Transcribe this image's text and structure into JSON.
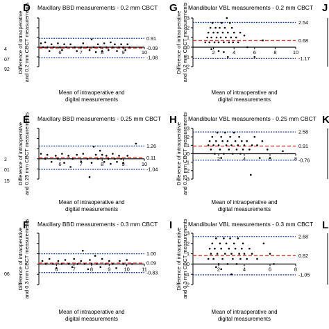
{
  "figure": {
    "edge_fragments": [
      "4",
      "07",
      "92",
      "2",
      "01",
      "15",
      "06"
    ],
    "right_letters": [
      "J",
      "K",
      "L"
    ]
  },
  "chart_data": [
    {
      "panel": "D",
      "type": "scatter",
      "title": "Maxillary BBD measurements - 0.2 mm CBCT",
      "xlabel": "Mean of intraoperative and\ndigital measurements",
      "ylabel": "Difference of intraoperative\nand 0.2 mm CBCT measurements",
      "xlim": [
        5,
        10
      ],
      "ylim": [
        -2,
        3
      ],
      "xticks": [
        6,
        7,
        8,
        9,
        10
      ],
      "yticks": [
        -2,
        -1,
        0,
        1,
        2,
        3
      ],
      "show_y_tick_labels": false,
      "lines": {
        "mean": -0.09,
        "upper": 0.91,
        "lower": -1.08
      },
      "line_labels": [
        "0.91",
        "-0.09",
        "-1.08"
      ],
      "points": [
        [
          5.1,
          0.4
        ],
        [
          5.2,
          0
        ],
        [
          5.3,
          0.5
        ],
        [
          5.4,
          0
        ],
        [
          5.5,
          -0.4
        ],
        [
          5.6,
          0.3
        ],
        [
          5.7,
          0
        ],
        [
          5.9,
          0.4
        ],
        [
          6.0,
          0
        ],
        [
          6.1,
          -0.3
        ],
        [
          6.2,
          0.3
        ],
        [
          6.3,
          0
        ],
        [
          6.5,
          0.3
        ],
        [
          6.7,
          0
        ],
        [
          6.8,
          -0.4
        ],
        [
          7.0,
          0
        ],
        [
          7.1,
          0.4
        ],
        [
          7.3,
          0
        ],
        [
          7.4,
          -0.3
        ],
        [
          7.5,
          0.8
        ],
        [
          7.6,
          0
        ],
        [
          7.7,
          -0.5
        ],
        [
          7.8,
          0.3
        ],
        [
          7.9,
          0
        ],
        [
          8.0,
          -0.4
        ],
        [
          8.1,
          0.4
        ],
        [
          8.2,
          0
        ],
        [
          8.3,
          -0.3
        ],
        [
          8.4,
          0.5
        ],
        [
          8.5,
          0
        ],
        [
          8.6,
          0.3
        ],
        [
          8.7,
          -0.4
        ],
        [
          8.8,
          0
        ],
        [
          8.9,
          0.3
        ],
        [
          9.0,
          0
        ],
        [
          9.1,
          -0.3
        ],
        [
          9.2,
          0.3
        ],
        [
          9.3,
          0
        ]
      ]
    },
    {
      "panel": "G",
      "type": "scatter",
      "title": "Mandibular VBL measurements - 0.2 mm CBCT",
      "xlabel": "Mean of intraoperative and\ndigital measurements",
      "ylabel": "Difference of intraoperative\nand 0.2 mm CBCT measurements",
      "xlim": [
        0,
        10
      ],
      "ylim": [
        -2,
        3
      ],
      "xticks": [
        2,
        4,
        6,
        8,
        10
      ],
      "yticks": [
        -2,
        -1,
        0,
        1,
        2,
        3
      ],
      "show_y_tick_labels": true,
      "lines": {
        "mean": 0.68,
        "upper": 2.54,
        "lower": -1.17
      },
      "line_labels": [
        "2.54",
        "0.68",
        "-1.17"
      ],
      "points": [
        [
          1.2,
          0.5
        ],
        [
          1.4,
          1.0
        ],
        [
          1.5,
          1.5
        ],
        [
          1.6,
          0.5
        ],
        [
          1.7,
          2.0
        ],
        [
          1.8,
          1.0
        ],
        [
          1.9,
          2.5
        ],
        [
          2.0,
          1.5
        ],
        [
          2.1,
          0.5
        ],
        [
          2.2,
          2.0
        ],
        [
          2.3,
          1.0
        ],
        [
          2.4,
          1.5
        ],
        [
          2.5,
          0.5
        ],
        [
          2.6,
          2.0
        ],
        [
          2.7,
          1.0
        ],
        [
          2.8,
          2.5
        ],
        [
          2.9,
          1.5
        ],
        [
          3.0,
          0.5
        ],
        [
          3.1,
          2.0
        ],
        [
          3.2,
          1.0
        ],
        [
          3.3,
          3.0
        ],
        [
          3.4,
          1.5
        ],
        [
          3.5,
          0.5
        ],
        [
          3.6,
          2.5
        ],
        [
          3.7,
          1.0
        ],
        [
          3.8,
          2.0
        ],
        [
          3.9,
          0.5
        ],
        [
          4.0,
          1.5
        ],
        [
          4.2,
          1.0
        ],
        [
          4.4,
          0.5
        ],
        [
          4.6,
          1.5
        ],
        [
          2.5,
          -0.4
        ],
        [
          3.0,
          -0.5
        ],
        [
          3.4,
          -1.0
        ],
        [
          1.8,
          -0.2
        ],
        [
          5.0,
          1.2
        ],
        [
          5.3,
          0.0
        ],
        [
          6.0,
          -1.0
        ],
        [
          6.8,
          0.7
        ]
      ]
    },
    {
      "panel": "E",
      "type": "scatter",
      "title": "Maxillary BBD measurements - 0.25 mm CBCT",
      "xlabel": "Mean of intraoperative and\ndigital measurements",
      "ylabel": "Difference of intraoperative\nand 0.25 mm CBCT measurements",
      "xlim": [
        5,
        10
      ],
      "ylim": [
        -2,
        3
      ],
      "xticks": [
        6,
        7,
        8,
        9,
        10
      ],
      "yticks": [
        -2,
        -1,
        0,
        1,
        2,
        3
      ],
      "show_y_tick_labels": false,
      "lines": {
        "mean": 0.11,
        "upper": 1.26,
        "lower": -1.04
      },
      "line_labels": [
        "1.26",
        "0.11",
        "-1.04"
      ],
      "points": [
        [
          5.1,
          0.5
        ],
        [
          5.3,
          0
        ],
        [
          5.4,
          0.4
        ],
        [
          5.6,
          -0.3
        ],
        [
          5.8,
          0.3
        ],
        [
          5.9,
          0
        ],
        [
          6.1,
          0.5
        ],
        [
          6.2,
          -0.4
        ],
        [
          6.4,
          0.3
        ],
        [
          6.5,
          -0.8
        ],
        [
          6.6,
          0
        ],
        [
          6.8,
          0.4
        ],
        [
          7.0,
          -0.3
        ],
        [
          7.1,
          0.5
        ],
        [
          7.3,
          0
        ],
        [
          7.4,
          -1.8
        ],
        [
          7.5,
          -0.4
        ],
        [
          7.6,
          1.2
        ],
        [
          7.7,
          0.4
        ],
        [
          7.8,
          0
        ],
        [
          7.9,
          0.8
        ],
        [
          8.0,
          0.4
        ],
        [
          8.1,
          -0.3
        ],
        [
          8.2,
          0.3
        ],
        [
          8.3,
          0
        ],
        [
          8.4,
          -0.5
        ],
        [
          8.5,
          0.5
        ],
        [
          8.6,
          0
        ],
        [
          8.7,
          -0.3
        ],
        [
          8.8,
          0.3
        ],
        [
          8.9,
          0
        ],
        [
          9.0,
          -0.4
        ],
        [
          9.2,
          0.3
        ],
        [
          9.6,
          1.5
        ]
      ]
    },
    {
      "panel": "H",
      "type": "scatter",
      "title": "Mandibular VBL measurements - 0.25 mm CBCT",
      "xlabel": "Mean of intraoperative and\ndigital measurements",
      "ylabel": "Difference of intraoperative\nand 0.25 mm CBCT measurements",
      "xlim": [
        0,
        8
      ],
      "ylim": [
        -3,
        3
      ],
      "xticks": [
        2,
        4,
        6,
        8
      ],
      "yticks": [
        -3,
        -2,
        -1,
        0,
        1,
        2,
        3
      ],
      "show_y_tick_labels": true,
      "lines": {
        "mean": 0.91,
        "upper": 2.58,
        "lower": -0.76
      },
      "line_labels": [
        "2.58",
        "0.91",
        "-0.76"
      ],
      "points": [
        [
          1.2,
          1.0
        ],
        [
          1.3,
          1.5
        ],
        [
          1.4,
          0.5
        ],
        [
          1.5,
          2.0
        ],
        [
          1.6,
          1.0
        ],
        [
          1.7,
          0
        ],
        [
          1.8,
          1.5
        ],
        [
          1.9,
          2.5
        ],
        [
          2.0,
          1.0
        ],
        [
          2.1,
          0.5
        ],
        [
          2.2,
          2.0
        ],
        [
          2.3,
          1.5
        ],
        [
          2.4,
          0
        ],
        [
          2.5,
          2.5
        ],
        [
          2.6,
          1.0
        ],
        [
          2.7,
          1.5
        ],
        [
          2.8,
          0.5
        ],
        [
          2.9,
          2.0
        ],
        [
          3.0,
          1.0
        ],
        [
          3.1,
          0
        ],
        [
          3.2,
          2.5
        ],
        [
          3.3,
          1.5
        ],
        [
          3.4,
          0.5
        ],
        [
          3.5,
          1.0
        ],
        [
          3.6,
          2.0
        ],
        [
          3.7,
          0
        ],
        [
          3.8,
          1.5
        ],
        [
          3.9,
          0.5
        ],
        [
          4.0,
          1.0
        ],
        [
          4.2,
          1.5
        ],
        [
          4.4,
          0.5
        ],
        [
          4.6,
          1.0
        ],
        [
          4.8,
          2.0
        ],
        [
          5.0,
          1.0
        ],
        [
          5.2,
          -0.5
        ],
        [
          5.4,
          1.5
        ],
        [
          5.8,
          0.5
        ],
        [
          6.0,
          -0.5
        ],
        [
          4.5,
          -2.5
        ],
        [
          2.2,
          -0.5
        ],
        [
          7.0,
          0.3
        ]
      ]
    },
    {
      "panel": "F",
      "type": "scatter",
      "title": "Maxillary BBD measurements - 0.3 mm CBCT",
      "xlabel": "Mean of intraoperative and\ndigital measurements",
      "ylabel": "Difference of intraoperative\nand 0.3 mm CBCT measurements",
      "xlim": [
        5,
        11
      ],
      "ylim": [
        -2,
        3
      ],
      "xticks": [
        6,
        7,
        8,
        9,
        10,
        11
      ],
      "yticks": [
        -2,
        -1,
        0,
        1,
        2,
        3
      ],
      "show_y_tick_labels": false,
      "lines": {
        "mean": 0.09,
        "upper": 1.0,
        "lower": -0.83
      },
      "line_labels": [
        "1.00",
        "0.09",
        "-0.83"
      ],
      "points": [
        [
          5.2,
          0.3
        ],
        [
          5.4,
          0
        ],
        [
          5.6,
          0.5
        ],
        [
          5.8,
          0
        ],
        [
          6.0,
          -0.4
        ],
        [
          6.1,
          0.3
        ],
        [
          6.3,
          0
        ],
        [
          6.5,
          0.4
        ],
        [
          6.7,
          0
        ],
        [
          6.9,
          -0.3
        ],
        [
          7.0,
          0.5
        ],
        [
          7.2,
          0
        ],
        [
          7.4,
          0.3
        ],
        [
          7.5,
          1.3
        ],
        [
          7.6,
          0
        ],
        [
          7.8,
          -0.5
        ],
        [
          7.9,
          0.4
        ],
        [
          8.0,
          0
        ],
        [
          8.2,
          0.8
        ],
        [
          8.3,
          0
        ],
        [
          8.5,
          -0.3
        ],
        [
          8.6,
          0.5
        ],
        [
          8.8,
          0
        ],
        [
          9.0,
          0.3
        ],
        [
          9.2,
          0
        ],
        [
          9.4,
          -0.4
        ],
        [
          9.6,
          0.3
        ],
        [
          9.8,
          0
        ],
        [
          10.0,
          0.4
        ],
        [
          10.3,
          0
        ]
      ]
    },
    {
      "panel": "I",
      "type": "scatter",
      "title": "Mandibular VBL measurements - 0.3 mm CBCT",
      "xlabel": "Mean of intraoperative and\ndigital measurements",
      "ylabel": "Difference of intraoperative\nand 0.3 mm CBCT measurements",
      "xlim": [
        0,
        8
      ],
      "ylim": [
        -2,
        3
      ],
      "xticks": [
        2,
        4,
        6,
        8
      ],
      "yticks": [
        -2,
        -1,
        0,
        1,
        2,
        3
      ],
      "show_y_tick_labels": true,
      "lines": {
        "mean": 0.82,
        "upper": 2.68,
        "lower": -1.05
      },
      "line_labels": [
        "2.68",
        "0.82",
        "-1.05"
      ],
      "points": [
        [
          1.2,
          0.5
        ],
        [
          1.3,
          1.5
        ],
        [
          1.4,
          1.0
        ],
        [
          1.5,
          2.0
        ],
        [
          1.6,
          0.5
        ],
        [
          1.7,
          1.5
        ],
        [
          1.8,
          2.5
        ],
        [
          1.9,
          1.0
        ],
        [
          2.0,
          0
        ],
        [
          2.1,
          2.0
        ],
        [
          2.2,
          1.5
        ],
        [
          2.3,
          0.5
        ],
        [
          2.4,
          2.5
        ],
        [
          2.5,
          1.0
        ],
        [
          2.6,
          2.0
        ],
        [
          2.7,
          0
        ],
        [
          2.8,
          1.5
        ],
        [
          2.9,
          2.5
        ],
        [
          3.0,
          1.0
        ],
        [
          3.1,
          0.5
        ],
        [
          3.2,
          2.0
        ],
        [
          3.3,
          1.5
        ],
        [
          3.4,
          0
        ],
        [
          3.5,
          2.5
        ],
        [
          3.6,
          1.0
        ],
        [
          3.7,
          0.5
        ],
        [
          3.8,
          1.5
        ],
        [
          3.9,
          2.0
        ],
        [
          4.0,
          1.0
        ],
        [
          4.2,
          0.5
        ],
        [
          4.4,
          1.5
        ],
        [
          4.6,
          1.0
        ],
        [
          5.0,
          0.5
        ],
        [
          5.5,
          2.0
        ],
        [
          6.0,
          1.0
        ],
        [
          6.3,
          0
        ],
        [
          2.2,
          -0.5
        ],
        [
          3.0,
          -1.0
        ],
        [
          1.8,
          -0.3
        ]
      ]
    }
  ]
}
